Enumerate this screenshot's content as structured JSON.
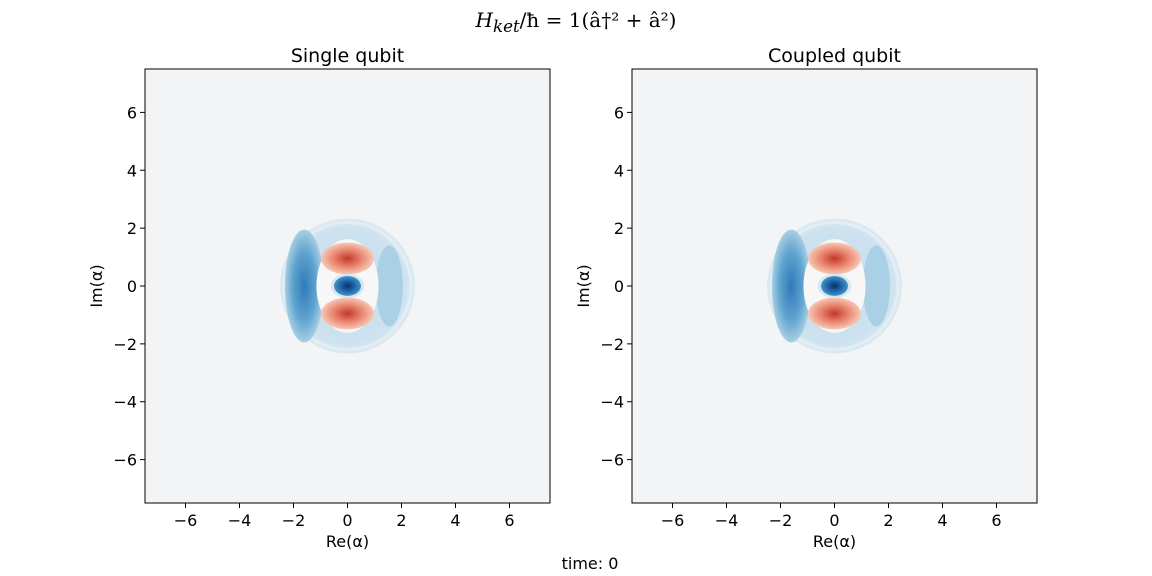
{
  "figure": {
    "suptitle": {
      "H": "H",
      "sub": "ket",
      "rest": "/ħ = 1(â†² + â²)"
    },
    "footer": "time: 0"
  },
  "colors": {
    "background": "#f3f4f6",
    "negative_dark": "#08306b",
    "negative_mid": "#2f7ab8",
    "negative_light": "#a7cfe3",
    "positive_dark": "#c0392b",
    "positive_mid": "#e8806a",
    "positive_light": "#f6c8b5"
  },
  "chart_data": [
    {
      "type": "heatmap",
      "title": "Single qubit",
      "xlabel": "Re(α)",
      "ylabel": "Im(α)",
      "xlim": [
        -7.5,
        7.5
      ],
      "ylim": [
        -7.5,
        7.5
      ],
      "xticks": [
        -6,
        -4,
        -2,
        0,
        2,
        4,
        6
      ],
      "yticks": [
        -6,
        -4,
        -2,
        0,
        2,
        4,
        6
      ],
      "xtick_labels": [
        "−6",
        "−4",
        "−2",
        "0",
        "2",
        "4",
        "6"
      ],
      "ytick_labels": [
        "−6",
        "−4",
        "−2",
        "0",
        "2",
        "4",
        "6"
      ],
      "grid": false,
      "colormap": "RdBu (Wigner function)",
      "features": [
        {
          "name": "outer-halo",
          "center": [
            0,
            0
          ],
          "radius": 2.5,
          "value": "weak negative"
        },
        {
          "name": "left-crescent",
          "center": [
            -1.6,
            0
          ],
          "value": "negative"
        },
        {
          "name": "right-crescent",
          "center": [
            1.55,
            0
          ],
          "value": "weak negative"
        },
        {
          "name": "upper-lobe",
          "center": [
            0,
            0.95
          ],
          "value": "positive"
        },
        {
          "name": "lower-lobe",
          "center": [
            0,
            -0.95
          ],
          "value": "positive"
        },
        {
          "name": "central-core",
          "center": [
            0,
            0
          ],
          "value": "strong negative"
        }
      ]
    },
    {
      "type": "heatmap",
      "title": "Coupled qubit",
      "xlabel": "Re(α)",
      "ylabel": "Im(α)",
      "xlim": [
        -7.5,
        7.5
      ],
      "ylim": [
        -7.5,
        7.5
      ],
      "xticks": [
        -6,
        -4,
        -2,
        0,
        2,
        4,
        6
      ],
      "yticks": [
        -6,
        -4,
        -2,
        0,
        2,
        4,
        6
      ],
      "xtick_labels": [
        "−6",
        "−4",
        "−2",
        "0",
        "2",
        "4",
        "6"
      ],
      "ytick_labels": [
        "−6",
        "−4",
        "−2",
        "0",
        "2",
        "4",
        "6"
      ],
      "grid": false,
      "colormap": "RdBu (Wigner function)",
      "features": [
        {
          "name": "outer-halo",
          "center": [
            0,
            0
          ],
          "radius": 2.5,
          "value": "weak negative"
        },
        {
          "name": "left-crescent",
          "center": [
            -1.6,
            0
          ],
          "value": "negative"
        },
        {
          "name": "right-crescent",
          "center": [
            1.55,
            0
          ],
          "value": "weak negative"
        },
        {
          "name": "upper-lobe",
          "center": [
            0,
            0.95
          ],
          "value": "positive"
        },
        {
          "name": "lower-lobe",
          "center": [
            0,
            -0.95
          ],
          "value": "positive"
        },
        {
          "name": "central-core",
          "center": [
            0,
            0
          ],
          "value": "strong negative"
        }
      ]
    }
  ]
}
